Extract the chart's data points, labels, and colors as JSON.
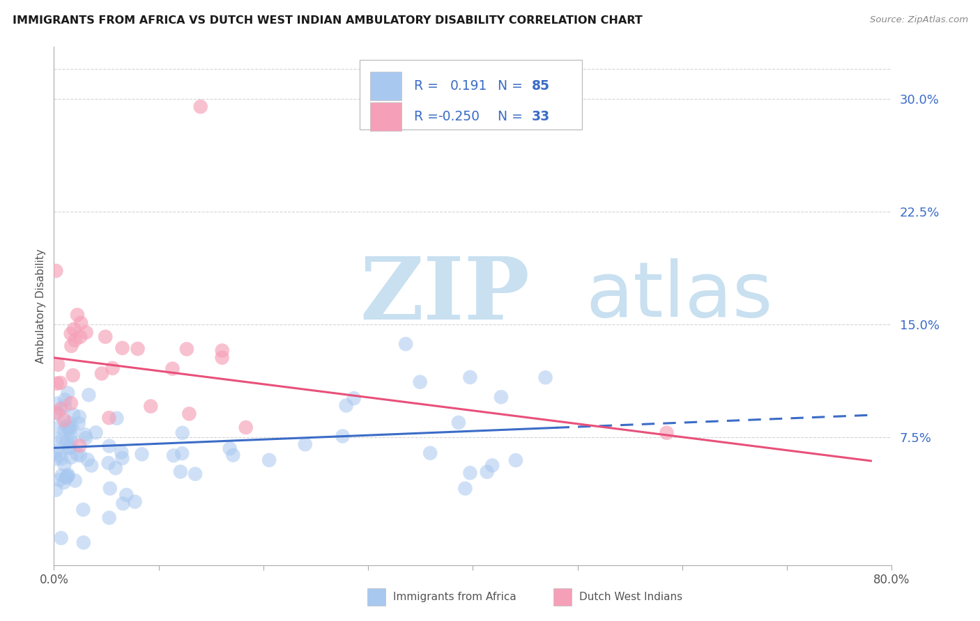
{
  "title": "IMMIGRANTS FROM AFRICA VS DUTCH WEST INDIAN AMBULATORY DISABILITY CORRELATION CHART",
  "source": "Source: ZipAtlas.com",
  "ylabel": "Ambulatory Disability",
  "blue_label": "Immigrants from Africa",
  "pink_label": "Dutch West Indians",
  "blue_R": 0.191,
  "blue_N": 85,
  "pink_R": -0.25,
  "pink_N": 33,
  "blue_color": "#A8C8F0",
  "pink_color": "#F5A0B8",
  "trend_blue": "#3B6CC7",
  "trend_pink": "#E8507A",
  "xlim": [
    0.0,
    0.8
  ],
  "ylim": [
    -0.01,
    0.335
  ],
  "plot_ylim": [
    0.0,
    0.32
  ],
  "yticks": [
    0.075,
    0.15,
    0.225,
    0.3
  ],
  "ytick_labels": [
    "7.5%",
    "15.0%",
    "22.5%",
    "30.0%"
  ],
  "background_color": "#ffffff",
  "grid_color": "#d0d0d0",
  "watermark_color": "#C8E0F0",
  "blue_intercept": 0.068,
  "blue_slope": 0.028,
  "pink_intercept": 0.128,
  "pink_slope": -0.088
}
